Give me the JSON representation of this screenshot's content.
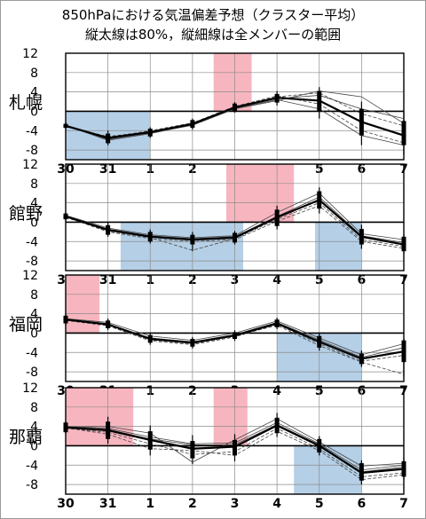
{
  "title": {
    "line1": "850hPaにおける気温偏差予想（クラスター平均）",
    "line2": "縦太線は80%，縦細線は全メンバーの範囲"
  },
  "chart_data": {
    "type": "line",
    "xticks": [
      "30",
      "31",
      "1",
      "2",
      "3",
      "4",
      "5",
      "6",
      "7"
    ],
    "yticks": [
      12,
      8,
      4,
      0,
      -4,
      -8
    ],
    "ylim": [
      -10,
      12
    ],
    "colors": {
      "warm": "#f7b6bf",
      "cold": "#b5cfe6",
      "line": "#000000",
      "grid": "#8c8c8c"
    },
    "panels": [
      {
        "name": "札幌",
        "mean": [
          -3,
          -5.5,
          -4.3,
          -2.6,
          0.8,
          2.8,
          2.2,
          -2.2,
          -5
        ],
        "p80": [
          [
            -3.4,
            -2.6
          ],
          [
            -6.6,
            -4.6
          ],
          [
            -5.2,
            -3.6
          ],
          [
            -3.4,
            -1.8
          ],
          [
            0,
            1.6
          ],
          [
            1.8,
            3.6
          ],
          [
            0,
            4.2
          ],
          [
            -5,
            0.5
          ],
          [
            -7,
            -2
          ]
        ],
        "full": [
          [
            -3.8,
            -2.2
          ],
          [
            -7,
            -4
          ],
          [
            -5.5,
            -3.3
          ],
          [
            -3.8,
            -1.5
          ],
          [
            -0.3,
            1.9
          ],
          [
            1.2,
            4.2
          ],
          [
            -1.5,
            5
          ],
          [
            -7,
            2
          ],
          [
            -9,
            0
          ]
        ],
        "members": [
          [
            -3,
            -5.8,
            -4.4,
            -2.7,
            0.7,
            2.6,
            3.3,
            0.5,
            -1.5
          ],
          [
            -3.2,
            -5.2,
            -4.2,
            -2.6,
            0.9,
            3,
            3.8,
            -0.5,
            -3
          ],
          [
            -2.9,
            -6,
            -4.6,
            -2.8,
            0.6,
            2.4,
            0.5,
            -5,
            -7
          ],
          [
            -3.1,
            -5.4,
            -4.0,
            -2.4,
            1,
            3.2,
            1.5,
            -4,
            -6.5
          ],
          [
            -3,
            -5.7,
            -4.5,
            -2.9,
            0.5,
            2.2,
            4.2,
            3,
            -2.5
          ]
        ],
        "shades": [
          {
            "kind": "cold",
            "from": 0,
            "to": 2
          },
          {
            "kind": "warm",
            "from": 3.5,
            "to": 4.4
          }
        ]
      },
      {
        "name": "館野",
        "mean": [
          1.2,
          -1.6,
          -3,
          -3.6,
          -3.2,
          1,
          4.6,
          -3,
          -4.6
        ],
        "p80": [
          [
            0.6,
            1.8
          ],
          [
            -2.6,
            -0.6
          ],
          [
            -4,
            -2
          ],
          [
            -4.6,
            -2.6
          ],
          [
            -4.2,
            -2.2
          ],
          [
            -0.8,
            2.6
          ],
          [
            2.8,
            6.4
          ],
          [
            -4.6,
            -1.4
          ],
          [
            -6,
            -3
          ]
        ],
        "full": [
          [
            0.2,
            2.2
          ],
          [
            -3,
            0
          ],
          [
            -4.4,
            -1.5
          ],
          [
            -6,
            -2
          ],
          [
            -4.6,
            -1.8
          ],
          [
            -1.5,
            3.4
          ],
          [
            1.8,
            7.2
          ],
          [
            -5.5,
            -0.5
          ],
          [
            -6.5,
            -2.5
          ]
        ],
        "members": [
          [
            1.2,
            -1.4,
            -2.8,
            -3.4,
            -3,
            1.2,
            5.2,
            -2.8,
            -4.2
          ],
          [
            1,
            -1.8,
            -3.2,
            -5.8,
            -3.4,
            0.6,
            4,
            -3.6,
            -5
          ],
          [
            1.4,
            -1.2,
            -2.6,
            -3.2,
            -2.8,
            2,
            6,
            -2.4,
            -3.6
          ],
          [
            1.1,
            -2,
            -3.4,
            -4,
            -3.6,
            0.2,
            3.4,
            -4,
            -5.4
          ]
        ],
        "shades": [
          {
            "kind": "warm",
            "from": 3.8,
            "to": 5.4
          },
          {
            "kind": "cold",
            "from": 1.3,
            "to": 4.2
          },
          {
            "kind": "cold",
            "from": 5.9,
            "to": 7
          }
        ]
      },
      {
        "name": "福岡",
        "mean": [
          2.8,
          1.8,
          -1.2,
          -2,
          -0.5,
          2,
          -1.8,
          -5.3,
          -3.8
        ],
        "p80": [
          [
            2,
            3.6
          ],
          [
            1,
            2.6
          ],
          [
            -2,
            -0.4
          ],
          [
            -2.8,
            -1.2
          ],
          [
            -1.2,
            0.2
          ],
          [
            1.2,
            2.8
          ],
          [
            -3,
            -0.6
          ],
          [
            -6.4,
            -4.2
          ],
          [
            -6,
            -1.5
          ]
        ],
        "full": [
          [
            1.6,
            4
          ],
          [
            0.6,
            3
          ],
          [
            -2.4,
            0
          ],
          [
            -3.2,
            -0.8
          ],
          [
            -1.6,
            0.6
          ],
          [
            0.8,
            3.2
          ],
          [
            -3.6,
            0
          ],
          [
            -7,
            -3.6
          ],
          [
            -9,
            -1
          ]
        ],
        "members": [
          [
            2.9,
            1.9,
            -1,
            -1.8,
            -0.3,
            2.2,
            -1.4,
            -5,
            -3
          ],
          [
            2.6,
            1.5,
            -1.6,
            -2.4,
            -0.8,
            1.8,
            -2.2,
            -5.8,
            -4.6
          ],
          [
            3,
            2.2,
            -0.6,
            -1.5,
            0,
            2.5,
            -1,
            -4.5,
            -2.2
          ],
          [
            2.7,
            1.6,
            -1.4,
            -2.2,
            -0.6,
            1.6,
            -2.6,
            -6,
            -8.5
          ]
        ],
        "shades": [
          {
            "kind": "warm",
            "from": 0,
            "to": 0.8
          },
          {
            "kind": "cold",
            "from": 5,
            "to": 7
          }
        ]
      },
      {
        "name": "那覇",
        "mean": [
          3.8,
          3.2,
          1.2,
          -0.6,
          -0.2,
          4.2,
          0,
          -5.6,
          -4.8
        ],
        "p80": [
          [
            2.8,
            4.8
          ],
          [
            1.4,
            5
          ],
          [
            -0.8,
            3
          ],
          [
            -2.6,
            1
          ],
          [
            -2,
            1.2
          ],
          [
            2.6,
            5.8
          ],
          [
            -1.4,
            1.4
          ],
          [
            -7.2,
            -3.6
          ],
          [
            -6.4,
            -3.2
          ]
        ],
        "full": [
          [
            2.4,
            5.2
          ],
          [
            0.4,
            6
          ],
          [
            -2,
            4.2
          ],
          [
            -3.8,
            2.2
          ],
          [
            -3.2,
            2.4
          ],
          [
            1.8,
            6.8
          ],
          [
            -2,
            2
          ],
          [
            -8,
            -3
          ],
          [
            -7,
            -2.4
          ]
        ],
        "members": [
          [
            4,
            3.6,
            1.8,
            0.4,
            0.6,
            4.8,
            0.4,
            -5,
            -4
          ],
          [
            3.6,
            2.8,
            0.4,
            -1.8,
            -1.2,
            3.6,
            -0.6,
            -6.4,
            -5.6
          ],
          [
            3.9,
            4,
            2.6,
            -3.4,
            1.2,
            5.6,
            0.8,
            -4.2,
            -3.6
          ],
          [
            3.7,
            2.4,
            -0.6,
            -1,
            -2,
            3,
            -1,
            -7,
            -6
          ],
          [
            3.8,
            3.4,
            1.4,
            0.2,
            0.2,
            4.4,
            0.2,
            -5.4,
            -4.4
          ]
        ],
        "shades": [
          {
            "kind": "warm",
            "from": 0,
            "to": 1.6
          },
          {
            "kind": "warm",
            "from": 3.5,
            "to": 4.3
          },
          {
            "kind": "cold",
            "from": 5.4,
            "to": 7
          }
        ]
      }
    ]
  }
}
